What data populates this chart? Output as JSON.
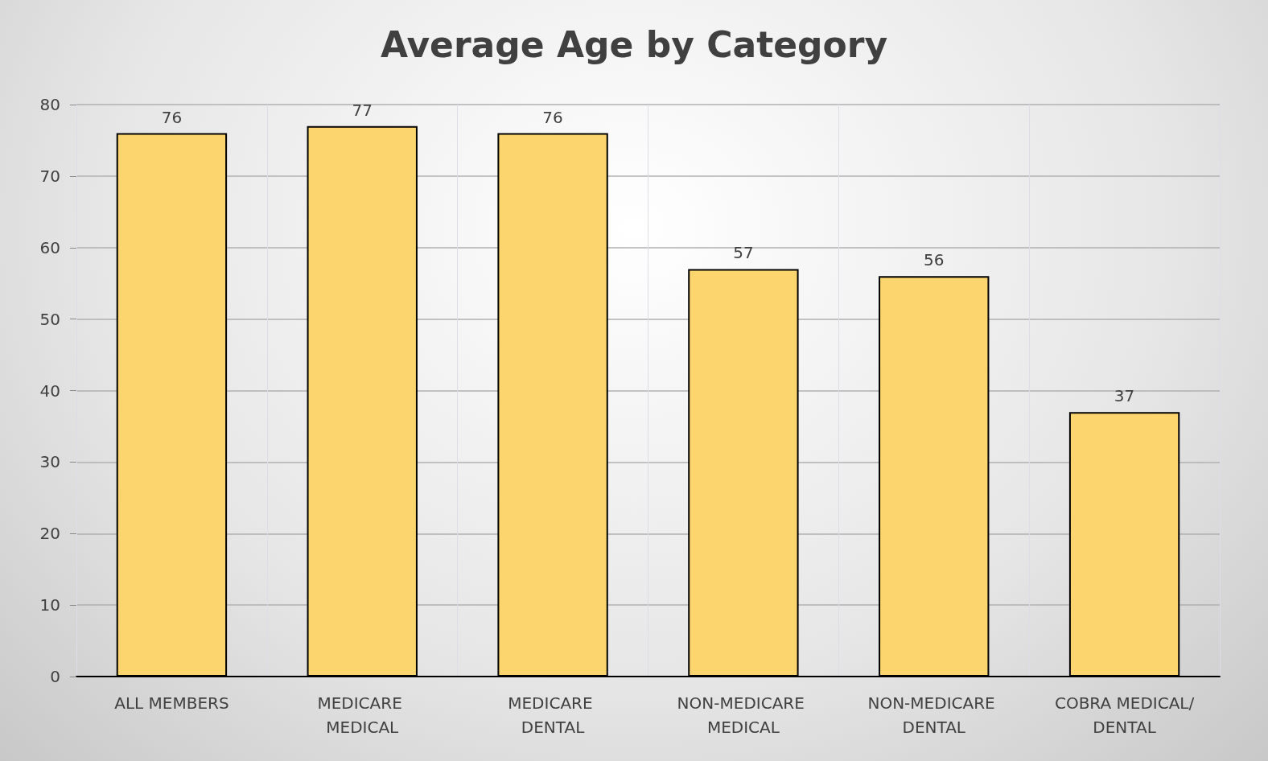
{
  "chart_data": {
    "type": "bar",
    "title": "Average Age by Category",
    "categories": [
      "ALL MEMBERS",
      "MEDICARE MEDICAL",
      "MEDICARE DENTAL",
      "NON-MEDICARE MEDICAL",
      "NON-MEDICARE DENTAL",
      "COBRA MEDICAL/DENTAL"
    ],
    "values": [
      76,
      77,
      76,
      57,
      56,
      37
    ],
    "color": "#fdd56e",
    "ylim": [
      0,
      80
    ],
    "yticks": [
      0,
      10,
      20,
      30,
      40,
      50,
      60,
      70,
      80
    ],
    "grid": true,
    "data_labels": true
  }
}
